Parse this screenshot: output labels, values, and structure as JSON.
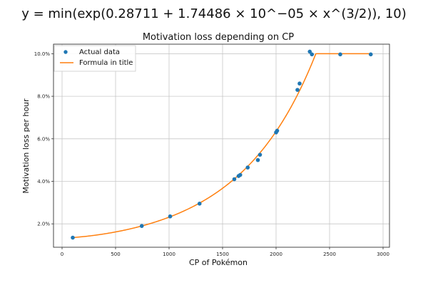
{
  "chart_data": {
    "type": "scatter",
    "suptitle": "y = min(exp(0.28711 + 1.74486 × 10^−05 × x^(3/2)), 10)",
    "title": "Motivation loss depending on CP",
    "xlabel": "CP of Pokémon",
    "ylabel": "Motivation loss per hour",
    "xlim": [
      -80,
      3060
    ],
    "ylim": [
      0.9,
      10.45
    ],
    "xticks": [
      0,
      500,
      1000,
      1500,
      2000,
      2500,
      3000
    ],
    "yticks": [
      2,
      4,
      6,
      8,
      10
    ],
    "ytick_labels": [
      "2.0%",
      "4.0%",
      "6.0%",
      "8.0%",
      "10.0%"
    ],
    "grid": true,
    "legend_position": "top-left",
    "colors": {
      "points": "#1f77b4",
      "line": "#ff7f0e",
      "grid": "#c8c8c8",
      "axes": "#333333"
    },
    "series": [
      {
        "name": "Actual data",
        "kind": "scatter",
        "x": [
          100,
          745,
          1010,
          1285,
          1610,
          1650,
          1665,
          1735,
          1830,
          1850,
          2000,
          2010,
          2200,
          2220,
          2315,
          2335,
          2600,
          2885
        ],
        "y": [
          1.35,
          1.9,
          2.35,
          2.95,
          4.1,
          4.25,
          4.3,
          4.65,
          5.0,
          5.25,
          6.3,
          6.38,
          8.3,
          8.6,
          10.1,
          9.97,
          9.97,
          9.97
        ]
      },
      {
        "name": "Formula in title",
        "kind": "line",
        "formula": {
          "a": 0.28711,
          "b": 1.74486e-05,
          "power": 1.5,
          "cap": 10
        },
        "x_range": [
          100,
          2885
        ]
      }
    ]
  }
}
